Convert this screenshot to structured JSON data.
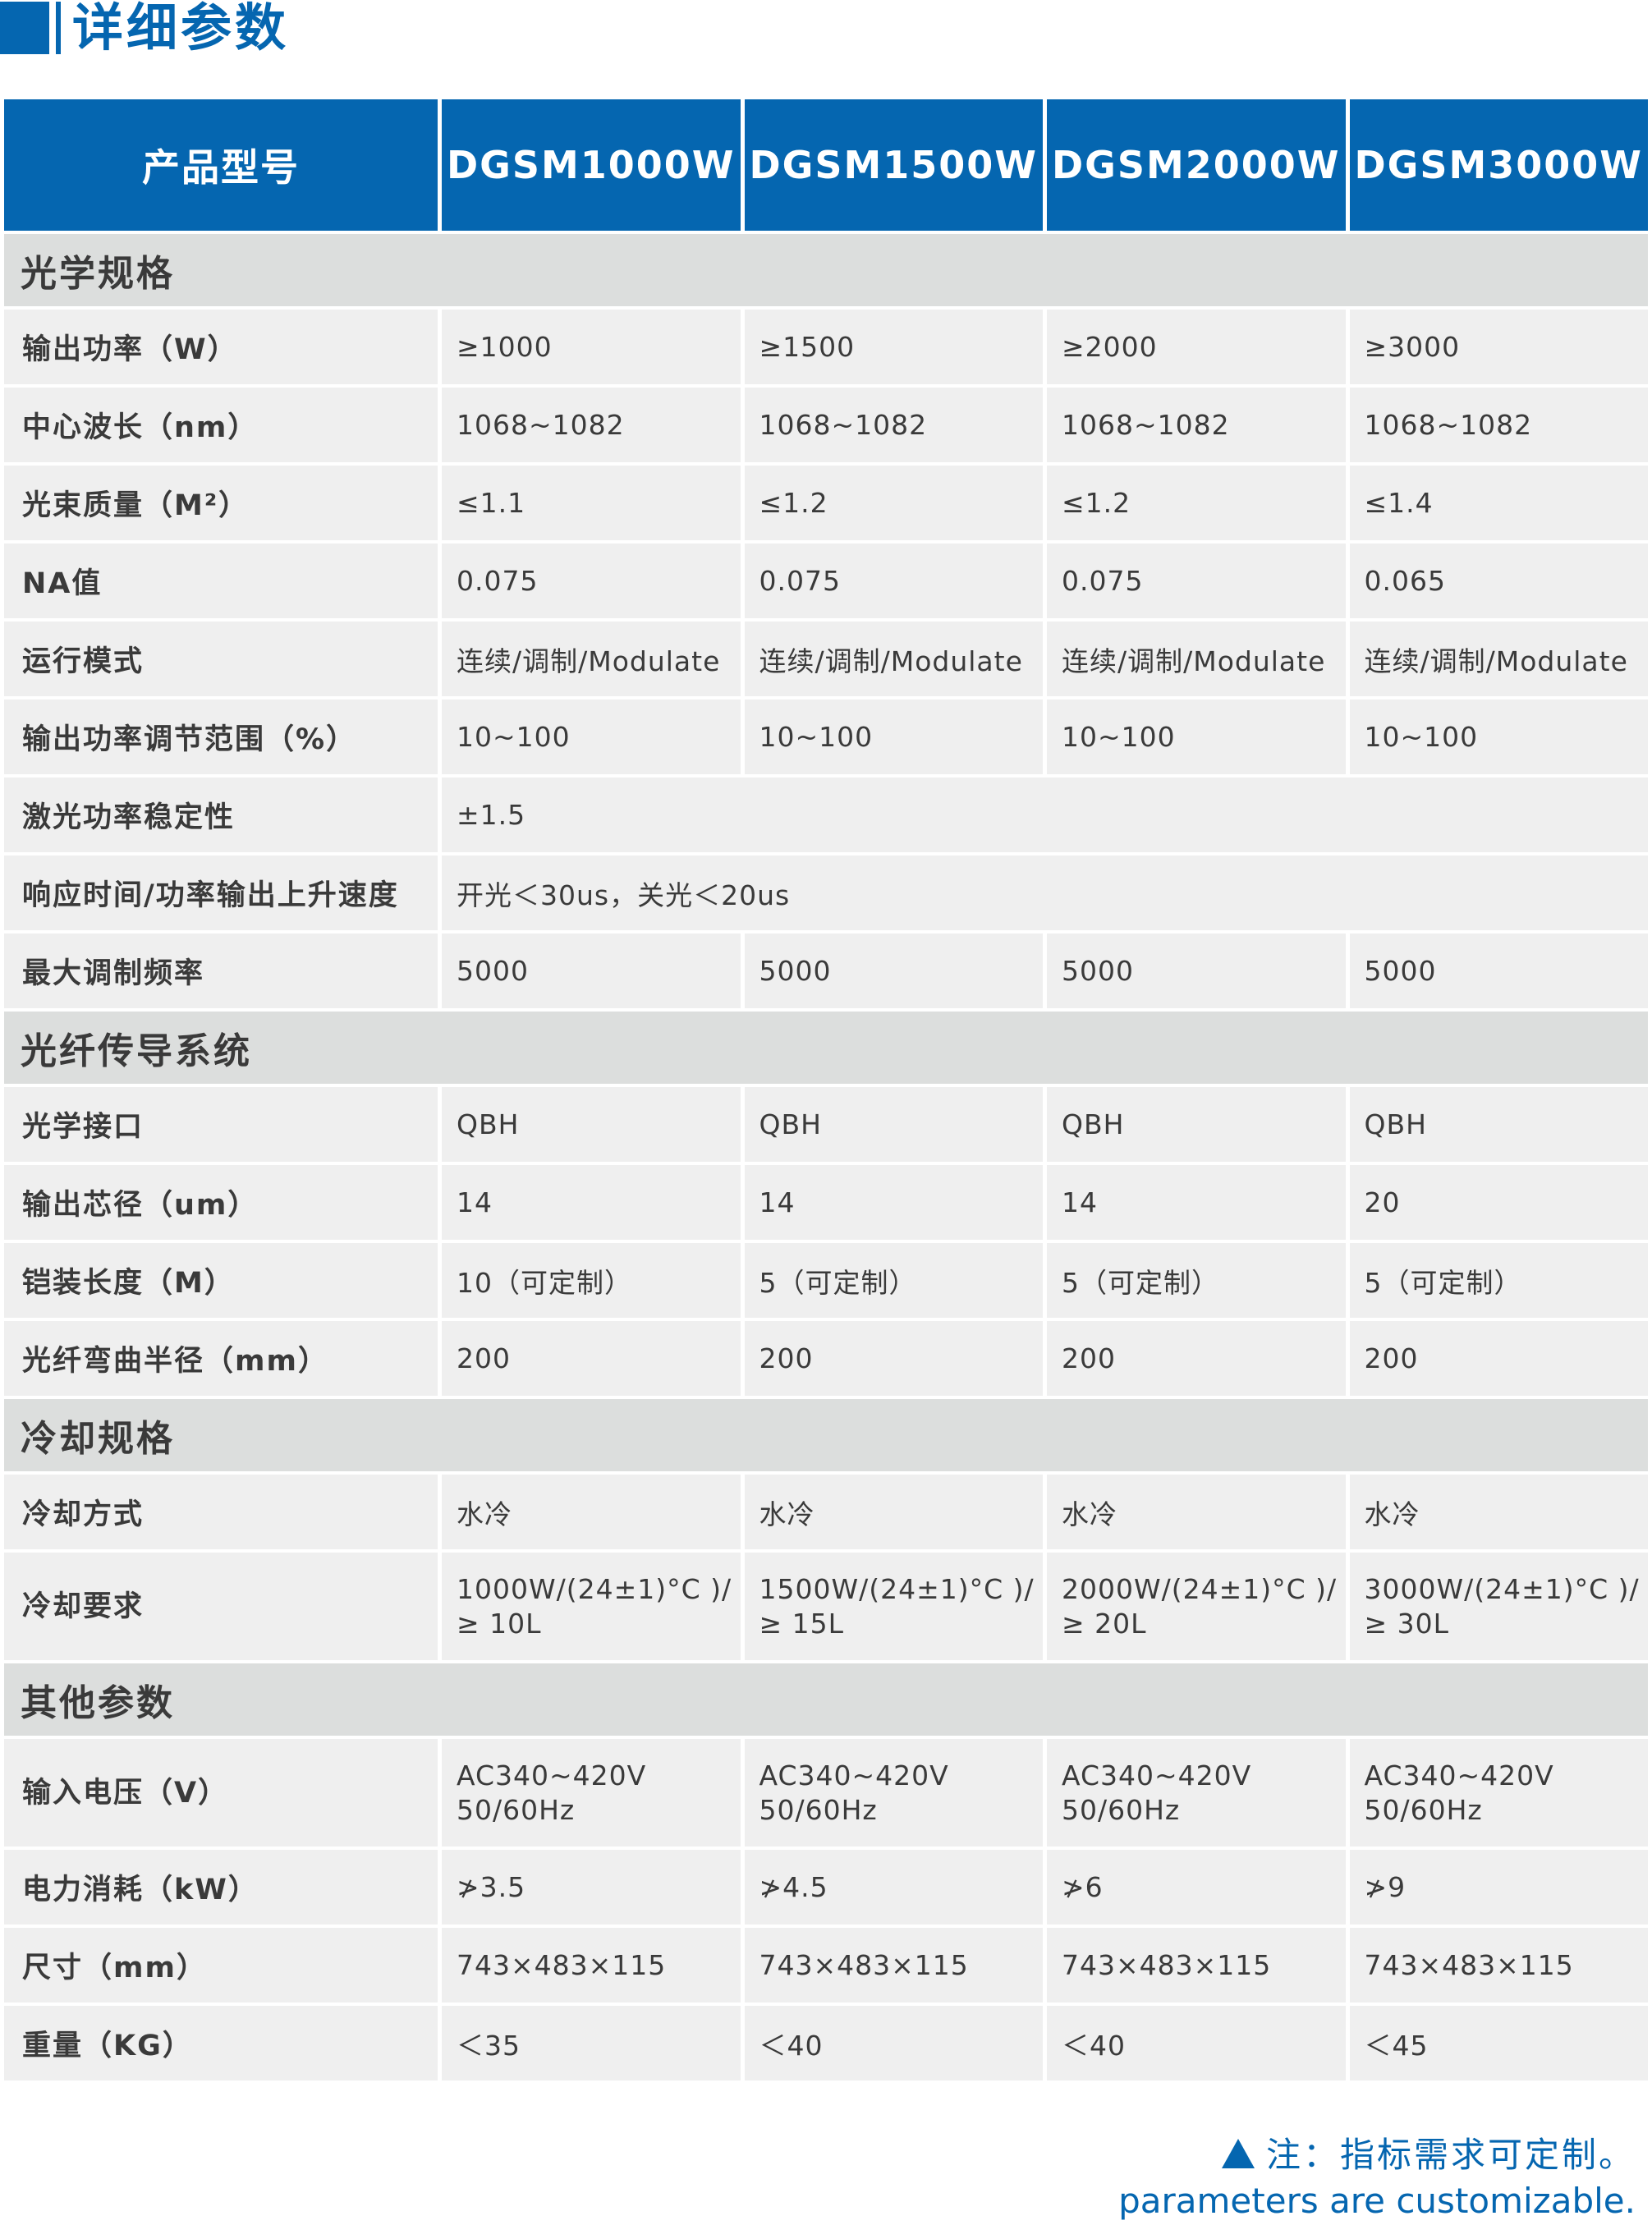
{
  "title": "详细参数",
  "colors": {
    "brand_blue": "#0566b0",
    "section_gray": "#dcdedd",
    "cell_gray": "#efefef"
  },
  "header": {
    "label": "产品型号",
    "models": [
      "DGSM1000W",
      "DGSM1500W",
      "DGSM2000W",
      "DGSM3000W"
    ]
  },
  "sections": [
    {
      "title": "光学规格",
      "rows": [
        {
          "label": "输出功率（W）",
          "values": [
            "≥1000",
            "≥1500",
            "≥2000",
            "≥3000"
          ]
        },
        {
          "label": "中心波长（nm）",
          "values": [
            "1068~1082",
            "1068~1082",
            "1068~1082",
            "1068~1082"
          ]
        },
        {
          "label": "光束质量（M²）",
          "values": [
            "≤1.1",
            "≤1.2",
            "≤1.2",
            "≤1.4"
          ]
        },
        {
          "label": "NA值",
          "values": [
            "0.075",
            "0.075",
            "0.075",
            "0.065"
          ]
        },
        {
          "label": "运行模式",
          "values": [
            "连续/调制/Modulate",
            "连续/调制/Modulate",
            "连续/调制/Modulate",
            "连续/调制/Modulate"
          ]
        },
        {
          "label": "输出功率调节范围（%）",
          "values": [
            "10~100",
            "10~100",
            "10~100",
            "10~100"
          ]
        },
        {
          "label": "激光功率稳定性",
          "span": "±1.5"
        },
        {
          "label": "响应时间/功率输出上升速度",
          "span": "开光＜30us，关光＜20us"
        },
        {
          "label": "最大调制频率",
          "values": [
            "5000",
            "5000",
            "5000",
            "5000"
          ]
        }
      ]
    },
    {
      "title": "光纤传导系统",
      "rows": [
        {
          "label": "光学接口",
          "values": [
            "QBH",
            "QBH",
            "QBH",
            "QBH"
          ]
        },
        {
          "label": "输出芯径（um）",
          "values": [
            "14",
            "14",
            "14",
            "20"
          ]
        },
        {
          "label": "铠装长度（M）",
          "values": [
            "10（可定制）",
            "5（可定制）",
            "5（可定制）",
            "5（可定制）"
          ]
        },
        {
          "label": "光纤弯曲半径（mm）",
          "values": [
            "200",
            "200",
            "200",
            "200"
          ]
        }
      ]
    },
    {
      "title": "冷却规格",
      "rows": [
        {
          "label": "冷却方式",
          "values": [
            "水冷",
            "水冷",
            "水冷",
            "水冷"
          ]
        },
        {
          "label": "冷却要求",
          "tall": true,
          "values": [
            "1000W/(24±1)°C )/≥ 10L",
            "1500W/(24±1)°C )/≥ 15L",
            "2000W/(24±1)°C )/≥ 20L",
            "3000W/(24±1)°C )/≥ 30L"
          ]
        }
      ]
    },
    {
      "title": "其他参数",
      "rows": [
        {
          "label": "输入电压（V）",
          "tall": true,
          "values": [
            "AC340~420V 50/60Hz",
            "AC340~420V 50/60Hz",
            "AC340~420V 50/60Hz",
            "AC340~420V 50/60Hz"
          ]
        },
        {
          "label": "电力消耗（kW）",
          "values": [
            "≯3.5",
            "≯4.5",
            "≯6",
            "≯9"
          ]
        },
        {
          "label": "尺寸（mm）",
          "values": [
            "743×483×115",
            "743×483×115",
            "743×483×115",
            "743×483×115"
          ]
        },
        {
          "label": "重量（KG）",
          "values": [
            "＜35",
            "＜40",
            "＜40",
            "＜45"
          ]
        }
      ]
    }
  ],
  "note": {
    "icon": "triangle-up-icon",
    "cn": "注：指标需求可定制。",
    "en": "parameters are customizable."
  }
}
